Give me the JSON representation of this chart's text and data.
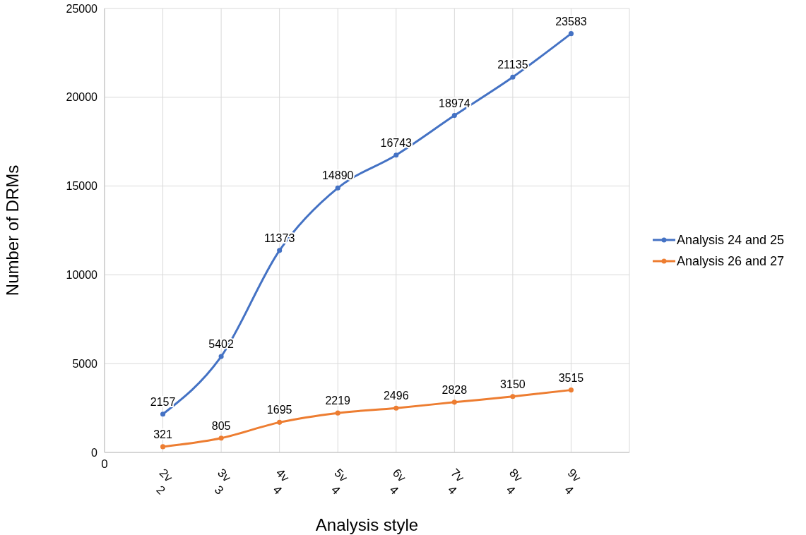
{
  "chart_data": {
    "type": "line",
    "xlabel": "Analysis style",
    "ylabel": "Number of DRMs",
    "categories": [
      "0",
      "2v 2",
      "3v 3",
      "4v 4",
      "5v 4",
      "6v 4",
      "7v 4",
      "8v 4",
      "9v 4",
      null
    ],
    "series": [
      {
        "name": "Analysis 24 and 25",
        "color": "#4472c4",
        "values": [
          null,
          2157,
          5402,
          11373,
          14890,
          16743,
          18974,
          21135,
          23583,
          null
        ]
      },
      {
        "name": "Analysis 26 and 27",
        "color": "#ed7d31",
        "values": [
          null,
          321,
          805,
          1695,
          2219,
          2496,
          2828,
          3150,
          3515,
          null
        ]
      }
    ],
    "ylim": [
      0,
      25000
    ],
    "yticks": [
      0,
      5000,
      10000,
      15000,
      20000,
      25000
    ],
    "grid": true,
    "legend": "right",
    "marker": "circle",
    "line_style": "solid",
    "data_labels": true
  }
}
